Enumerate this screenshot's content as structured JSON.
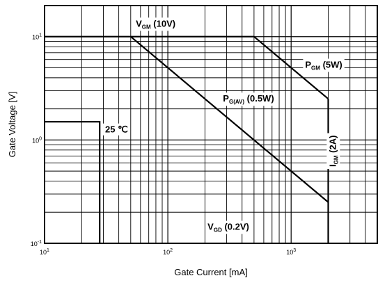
{
  "chart_data": {
    "type": "line",
    "title": "",
    "xlabel": "Gate Current [mA]",
    "ylabel": "Gate Voltage [V]",
    "x_scale": "log",
    "y_scale": "log",
    "xlim": [
      10,
      5000
    ],
    "ylim": [
      0.1,
      20
    ],
    "grid": true,
    "x_ticks": [
      {
        "value": 10,
        "base": "10",
        "exp": "1"
      },
      {
        "value": 100,
        "base": "10",
        "exp": "2"
      },
      {
        "value": 1000,
        "base": "10",
        "exp": "3"
      }
    ],
    "y_ticks": [
      {
        "value": 0.1,
        "base": "10",
        "exp": "-1"
      },
      {
        "value": 1,
        "base": "10",
        "exp": "0"
      },
      {
        "value": 10,
        "base": "10",
        "exp": "1"
      }
    ],
    "series": [
      {
        "x": [
          10,
          50,
          500,
          2000
        ],
        "y": [
          10,
          10,
          10,
          2.5
        ]
      },
      {
        "x": [
          50,
          2000
        ],
        "y": [
          10,
          0.25
        ]
      },
      {
        "x": [
          2000,
          2000
        ],
        "y": [
          0.1,
          2.5
        ]
      },
      {
        "x": [
          10,
          28,
          28
        ],
        "y": [
          1.5,
          1.5,
          0.1
        ]
      }
    ],
    "annotations": [
      {
        "id": "vgm",
        "main": "V",
        "sub": "GM",
        "rest": " (10V)",
        "x": 55,
        "y": 12.5
      },
      {
        "id": "pgm",
        "main": "P",
        "sub": "GM",
        "rest": " (5W)",
        "x": 1300,
        "y": 5.0
      },
      {
        "id": "pgav",
        "main": "P",
        "sub": "G(AV)",
        "rest": " (0.5W)",
        "x": 280,
        "y": 2.35
      },
      {
        "id": "temp",
        "main": "25 ℃",
        "sub": "",
        "rest": "",
        "x": 31,
        "y": 1.18
      },
      {
        "id": "vgd",
        "main": "V",
        "sub": "GD",
        "rest": " (0.2V)",
        "x": 210,
        "y": 0.135
      }
    ],
    "vertical_annotation": {
      "main": "I",
      "sub": "GM",
      "rest": " (2A)",
      "x": 2300,
      "y": 0.55
    }
  }
}
